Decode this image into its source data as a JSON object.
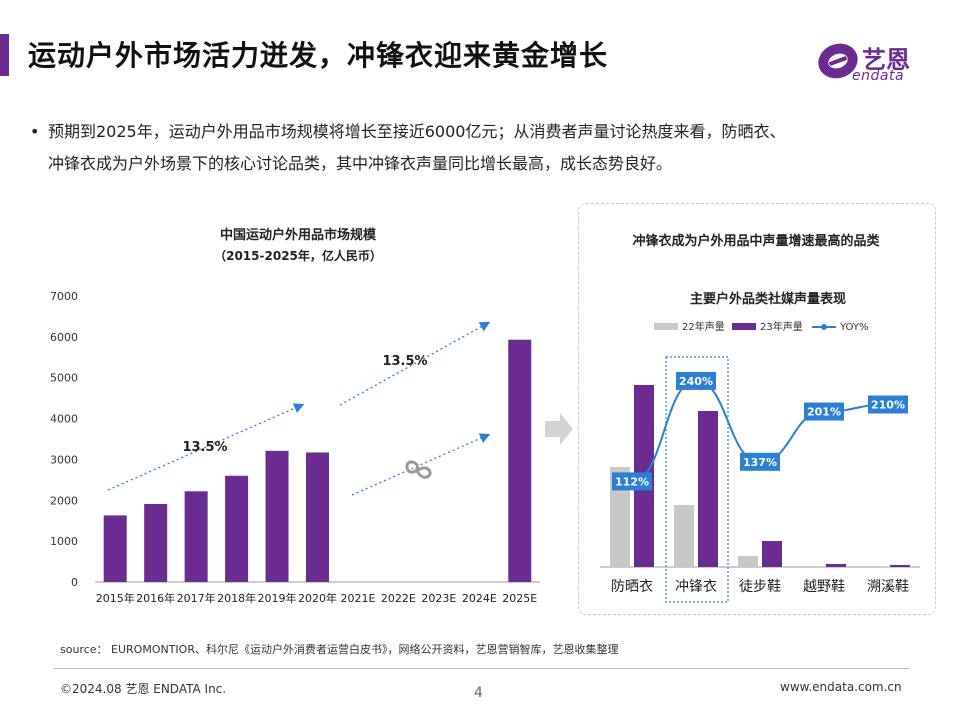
{
  "header": {
    "title": "运动户外市场活力迸发，冲锋衣迎来黄金增长",
    "logo_text": "艺恩",
    "logo_sub": "endata"
  },
  "bullet": {
    "line1": "预期到2025年，运动户外用品市场规模将增长至接近6000亿元；从消费者声量讨论热度来看，防晒衣、",
    "line2": "冲锋衣成为户外场景下的核心讨论品类，其中冲锋衣声量同比增长最高，成长态势良好。"
  },
  "arrow_growth_labels": [
    "13.5%",
    "13.5%"
  ],
  "right_panel_title": "冲锋衣成为户外用品中声量增速最高的品类",
  "chart_data": [
    {
      "type": "bar",
      "title": "中国运动户外用品市场规模",
      "subtitle": "（2015-2025年，亿人民币）",
      "categories": [
        "2015年",
        "2016年",
        "2017年",
        "2018年",
        "2019年",
        "2020年",
        "2021E",
        "2022E",
        "2023E",
        "2024E",
        "2025E"
      ],
      "values": [
        1630,
        1910,
        2220,
        2600,
        3210,
        3170,
        null,
        null,
        null,
        null,
        5930
      ],
      "ylim": [
        0,
        7000
      ],
      "yticks": [
        0,
        1000,
        2000,
        3000,
        4000,
        5000,
        6000,
        7000
      ],
      "grid": false,
      "color": "#6a2c91"
    },
    {
      "type": "bar+line",
      "title": "主要户外品类社媒声量表现",
      "categories": [
        "防晒衣",
        "冲锋衣",
        "徒步鞋",
        "越野鞋",
        "溯溪鞋"
      ],
      "series": [
        {
          "name": "22年声量",
          "values": [
            1000,
            620,
            110,
            0,
            0
          ],
          "color": "#c8c8c8"
        },
        {
          "name": "23年声量",
          "values": [
            1820,
            1560,
            260,
            30,
            20
          ],
          "color": "#6a2c91"
        }
      ],
      "line": {
        "name": "YOY%",
        "values": [
          112,
          240,
          137,
          201,
          210
        ],
        "labels": [
          "112%",
          "240%",
          "137%",
          "201%",
          "210%"
        ],
        "color": "#2b7fd4"
      },
      "highlight_category": "冲锋衣",
      "legend_position": "top"
    }
  ],
  "footer": {
    "source": "source： EUROMONTIOR、科尔尼《运动户外消费者运营白皮书》，网络公开资料，艺恩营销智库，艺恩收集整理",
    "copyright": "©2024.08 艺恩 ENDATA Inc.",
    "page": "4",
    "website": "www.endata.com.cn"
  }
}
